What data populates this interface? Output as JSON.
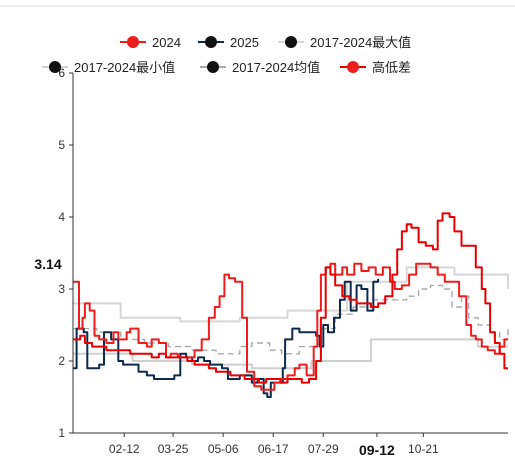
{
  "chart_data": {
    "type": "line",
    "title": "",
    "xlabel": "",
    "ylabel": "",
    "ylim": [
      1,
      6
    ],
    "yticks": [
      "1",
      "2",
      "3",
      "4",
      "5",
      "6"
    ],
    "x_range": [
      0,
      365
    ],
    "x_tick_labels": [
      {
        "label": "02-12",
        "day": 43
      },
      {
        "label": "03-25",
        "day": 84
      },
      {
        "label": "05-06",
        "day": 126
      },
      {
        "label": "06-17",
        "day": 168
      },
      {
        "label": "07-29",
        "day": 210
      },
      {
        "label": "09-12",
        "day": 255
      },
      {
        "label": "10-21",
        "day": 294
      }
    ],
    "cursor": {
      "day": 255,
      "x_label": "09-12",
      "y_label": "3.14",
      "y_value": 3.14
    },
    "legend": {
      "placement": "top"
    },
    "grid": false,
    "series": [
      {
        "name": "2017-2024最大值",
        "color": "#d7d7d7",
        "dash": "none",
        "points": [
          [
            0,
            2.8
          ],
          [
            40,
            2.6
          ],
          [
            90,
            2.55
          ],
          [
            140,
            2.6
          ],
          [
            180,
            2.7
          ],
          [
            230,
            3.1
          ],
          [
            280,
            3.3
          ],
          [
            320,
            3.2
          ],
          [
            365,
            3.0
          ]
        ]
      },
      {
        "name": "2017-2024最小值",
        "color": "#cfcfcf",
        "dash": "none",
        "points": [
          [
            0,
            2.1
          ],
          [
            50,
            2.0
          ],
          [
            100,
            1.95
          ],
          [
            150,
            1.9
          ],
          [
            200,
            2.0
          ],
          [
            250,
            2.3
          ],
          [
            300,
            2.3
          ],
          [
            340,
            2.2
          ],
          [
            365,
            2.2
          ]
        ]
      },
      {
        "name": "2017-2024均值",
        "color": "#a8a8a8",
        "dash": "6,4",
        "points": [
          [
            0,
            2.45
          ],
          [
            20,
            2.4
          ],
          [
            40,
            2.3
          ],
          [
            60,
            2.25
          ],
          [
            80,
            2.2
          ],
          [
            100,
            2.15
          ],
          [
            120,
            2.1
          ],
          [
            140,
            2.2
          ],
          [
            150,
            2.25
          ],
          [
            165,
            2.15
          ],
          [
            175,
            2.1
          ],
          [
            190,
            2.2
          ],
          [
            205,
            2.45
          ],
          [
            220,
            2.65
          ],
          [
            235,
            2.75
          ],
          [
            250,
            2.85
          ],
          [
            265,
            2.85
          ],
          [
            280,
            2.9
          ],
          [
            290,
            3.0
          ],
          [
            300,
            3.05
          ],
          [
            310,
            3.0
          ],
          [
            318,
            2.75
          ],
          [
            326,
            2.9
          ],
          [
            332,
            2.6
          ],
          [
            340,
            2.5
          ],
          [
            350,
            2.4
          ],
          [
            358,
            2.3
          ],
          [
            365,
            2.45
          ]
        ]
      },
      {
        "name": "2025",
        "color": "#0d2a4d",
        "dash": "none",
        "points": [
          [
            0,
            1.9
          ],
          [
            3,
            2.45
          ],
          [
            9,
            2.4
          ],
          [
            12,
            1.9
          ],
          [
            22,
            1.95
          ],
          [
            26,
            2.4
          ],
          [
            32,
            2.3
          ],
          [
            38,
            2.0
          ],
          [
            42,
            1.95
          ],
          [
            50,
            1.95
          ],
          [
            55,
            1.85
          ],
          [
            62,
            1.8
          ],
          [
            68,
            1.75
          ],
          [
            85,
            1.8
          ],
          [
            90,
            2.1
          ],
          [
            95,
            2.05
          ],
          [
            100,
            2.0
          ],
          [
            105,
            2.05
          ],
          [
            110,
            2.0
          ],
          [
            115,
            1.95
          ],
          [
            125,
            1.9
          ],
          [
            130,
            1.75
          ],
          [
            140,
            1.8
          ],
          [
            150,
            1.7
          ],
          [
            155,
            1.75
          ],
          [
            160,
            1.55
          ],
          [
            163,
            1.5
          ],
          [
            166,
            1.7
          ],
          [
            172,
            1.7
          ],
          [
            176,
            1.9
          ],
          [
            178,
            2.3
          ],
          [
            184,
            2.45
          ],
          [
            190,
            2.4
          ],
          [
            200,
            2.4
          ],
          [
            204,
            2.35
          ],
          [
            207,
            2.2
          ],
          [
            210,
            2.5
          ],
          [
            214,
            2.4
          ],
          [
            219,
            2.6
          ],
          [
            224,
            2.85
          ],
          [
            228,
            3.1
          ],
          [
            233,
            2.7
          ],
          [
            238,
            3.05
          ],
          [
            242,
            3.0
          ],
          [
            247,
            2.7
          ],
          [
            252,
            3.1
          ],
          [
            256,
            3.14
          ]
        ]
      },
      {
        "name": "2024",
        "color": "#ee1c1c",
        "dash": "none",
        "points": [
          [
            0,
            3.1
          ],
          [
            5,
            2.45
          ],
          [
            8,
            2.6
          ],
          [
            10,
            2.8
          ],
          [
            14,
            2.7
          ],
          [
            18,
            2.35
          ],
          [
            22,
            2.3
          ],
          [
            28,
            2.25
          ],
          [
            34,
            2.4
          ],
          [
            38,
            2.3
          ],
          [
            45,
            2.4
          ],
          [
            48,
            2.45
          ],
          [
            55,
            2.25
          ],
          [
            62,
            2.2
          ],
          [
            66,
            2.3
          ],
          [
            72,
            2.25
          ],
          [
            78,
            2.05
          ],
          [
            82,
            2.1
          ],
          [
            88,
            2.05
          ],
          [
            95,
            2.05
          ],
          [
            102,
            2.15
          ],
          [
            108,
            2.3
          ],
          [
            114,
            2.6
          ],
          [
            119,
            2.75
          ],
          [
            123,
            2.9
          ],
          [
            127,
            3.2
          ],
          [
            131,
            3.15
          ],
          [
            136,
            3.1
          ],
          [
            142,
            2.6
          ],
          [
            146,
            1.85
          ],
          [
            152,
            1.65
          ],
          [
            158,
            1.6
          ],
          [
            164,
            1.6
          ],
          [
            169,
            1.7
          ],
          [
            174,
            1.75
          ],
          [
            180,
            1.8
          ],
          [
            186,
            1.9
          ],
          [
            190,
            1.95
          ],
          [
            196,
            1.8
          ],
          [
            202,
            2.2
          ],
          [
            205,
            2.7
          ],
          [
            208,
            3.2
          ],
          [
            212,
            3.3
          ],
          [
            216,
            3.35
          ],
          [
            220,
            3.2
          ],
          [
            226,
            3.3
          ],
          [
            230,
            3.2
          ],
          [
            236,
            3.35
          ],
          [
            242,
            3.25
          ],
          [
            248,
            3.3
          ],
          [
            254,
            3.2
          ],
          [
            260,
            3.3
          ],
          [
            266,
            3.1
          ],
          [
            270,
            3.0
          ],
          [
            276,
            3.05
          ],
          [
            282,
            3.2
          ],
          [
            288,
            3.35
          ],
          [
            294,
            3.35
          ],
          [
            300,
            3.3
          ],
          [
            306,
            3.2
          ],
          [
            312,
            3.1
          ],
          [
            318,
            3.1
          ],
          [
            324,
            2.9
          ],
          [
            330,
            2.5
          ],
          [
            334,
            2.35
          ],
          [
            338,
            2.3
          ],
          [
            343,
            2.2
          ],
          [
            348,
            2.15
          ],
          [
            354,
            2.1
          ],
          [
            358,
            2.2
          ],
          [
            362,
            2.3
          ],
          [
            365,
            2.3
          ]
        ]
      },
      {
        "name": "高低差",
        "color": "#e80000",
        "dash": "none",
        "points": [
          [
            0,
            2.3
          ],
          [
            6,
            2.35
          ],
          [
            10,
            2.25
          ],
          [
            16,
            2.2
          ],
          [
            22,
            2.2
          ],
          [
            28,
            2.15
          ],
          [
            34,
            2.15
          ],
          [
            42,
            2.15
          ],
          [
            48,
            2.1
          ],
          [
            54,
            2.1
          ],
          [
            60,
            2.1
          ],
          [
            66,
            2.05
          ],
          [
            72,
            2.1
          ],
          [
            78,
            2.05
          ],
          [
            84,
            2.05
          ],
          [
            90,
            2.05
          ],
          [
            96,
            2.0
          ],
          [
            102,
            1.95
          ],
          [
            108,
            1.95
          ],
          [
            114,
            1.9
          ],
          [
            120,
            1.85
          ],
          [
            126,
            1.85
          ],
          [
            132,
            1.8
          ],
          [
            138,
            1.8
          ],
          [
            144,
            1.75
          ],
          [
            150,
            1.75
          ],
          [
            156,
            1.7
          ],
          [
            162,
            1.75
          ],
          [
            168,
            1.75
          ],
          [
            174,
            1.7
          ],
          [
            180,
            1.75
          ],
          [
            186,
            1.75
          ],
          [
            192,
            1.7
          ],
          [
            198,
            1.75
          ],
          [
            204,
            2.0
          ],
          [
            208,
            2.6
          ],
          [
            212,
            3.3
          ],
          [
            216,
            3.2
          ],
          [
            220,
            3.05
          ],
          [
            226,
            2.9
          ],
          [
            232,
            2.85
          ],
          [
            238,
            2.8
          ],
          [
            244,
            2.8
          ],
          [
            250,
            2.75
          ],
          [
            256,
            2.8
          ],
          [
            262,
            2.9
          ],
          [
            268,
            3.2
          ],
          [
            272,
            3.55
          ],
          [
            276,
            3.8
          ],
          [
            280,
            3.9
          ],
          [
            284,
            3.85
          ],
          [
            290,
            3.65
          ],
          [
            296,
            3.6
          ],
          [
            302,
            3.55
          ],
          [
            306,
            3.95
          ],
          [
            310,
            4.05
          ],
          [
            316,
            4.0
          ],
          [
            320,
            3.8
          ],
          [
            326,
            3.6
          ],
          [
            332,
            3.6
          ],
          [
            338,
            3.3
          ],
          [
            343,
            3.0
          ],
          [
            346,
            2.8
          ],
          [
            350,
            2.4
          ],
          [
            354,
            2.25
          ],
          [
            358,
            2.1
          ],
          [
            362,
            1.9
          ],
          [
            365,
            1.9
          ]
        ]
      }
    ]
  }
}
